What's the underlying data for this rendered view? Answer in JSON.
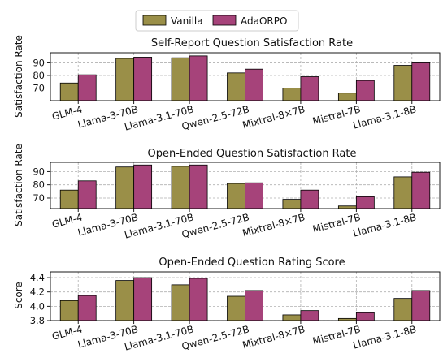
{
  "legend": {
    "vanilla": "Vanilla",
    "adaorpo": "AdaORPO"
  },
  "colors": {
    "vanilla": "#9a8f48",
    "adaorpo": "#a6437a",
    "edge": "#000000",
    "grid": "#b0b0b0"
  },
  "chart_data": [
    {
      "type": "bar",
      "title": "Self-Report Question Satisfaction Rate",
      "ylabel": "Satisfaction Rate",
      "ylim": [
        60,
        98
      ],
      "yticks": [
        "80",
        "90",
        "70"
      ],
      "yticks_values": [
        80,
        90,
        70
      ],
      "categories": [
        "GLM-4",
        "Llama-3-70B",
        "Llama-3.1-70B",
        "Qwen-2.5-72B",
        "Mixtral-8×7B",
        "Mistral-7B",
        "Llama-3.1-8B"
      ],
      "series": [
        {
          "name": "Vanilla",
          "values": [
            74,
            93.5,
            94,
            82,
            70,
            66,
            88
          ]
        },
        {
          "name": "AdaORPO",
          "values": [
            80.5,
            94.5,
            95.5,
            85,
            79,
            76,
            90
          ]
        }
      ],
      "grid": true
    },
    {
      "type": "bar",
      "title": "Open-Ended Question Satisfaction Rate",
      "ylabel": "Satisfaction Rate",
      "ylim": [
        62,
        97
      ],
      "yticks": [
        "90",
        "80",
        "70"
      ],
      "yticks_values": [
        90,
        80,
        70
      ],
      "categories": [
        "GLM-4",
        "Llama-3-70B",
        "Llama-3.1-70B",
        "Qwen-2.5-72B",
        "Mixtral-8×7B",
        "Mistral-7B",
        "Llama-3.1-8B"
      ],
      "series": [
        {
          "name": "Vanilla",
          "values": [
            76,
            93.5,
            94,
            81,
            69,
            64,
            86
          ]
        },
        {
          "name": "AdaORPO",
          "values": [
            83,
            95,
            95,
            81.5,
            76,
            71,
            89.5
          ]
        }
      ],
      "grid": true
    },
    {
      "type": "bar",
      "title": "Open-Ended Question Rating Score",
      "ylabel": "Score",
      "ylim": [
        3.8,
        4.48
      ],
      "yticks": [
        "4.4",
        "4.2",
        "4.0",
        "3.8"
      ],
      "yticks_values": [
        4.4,
        4.2,
        4.0,
        3.8
      ],
      "categories": [
        "GLM-4",
        "Llama-3-70B",
        "Llama-3.1-70B",
        "Qwen-2.5-72B",
        "Mixtral-8×7B",
        "Mistral-7B",
        "Llama-3.1-8B"
      ],
      "series": [
        {
          "name": "Vanilla",
          "values": [
            4.08,
            4.36,
            4.3,
            4.14,
            3.88,
            3.83,
            4.11
          ]
        },
        {
          "name": "AdaORPO",
          "values": [
            4.15,
            4.4,
            4.39,
            4.22,
            3.94,
            3.91,
            4.22
          ]
        }
      ],
      "grid": true
    }
  ]
}
